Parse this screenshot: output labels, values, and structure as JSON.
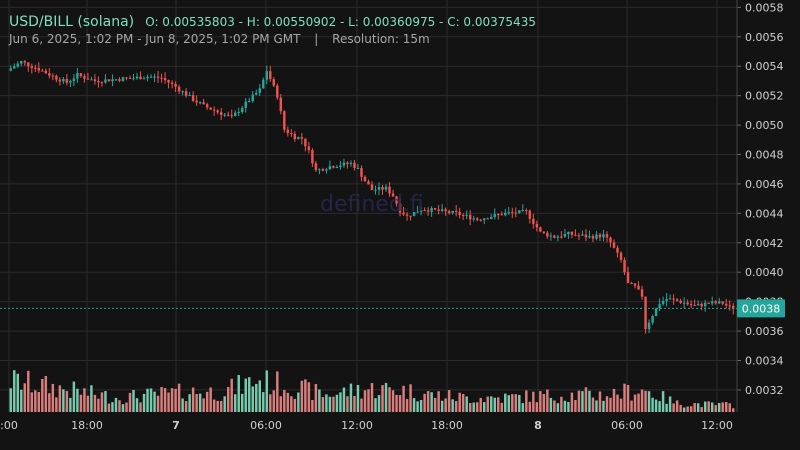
{
  "header": {
    "pair": "USD/BILL (solana)",
    "ohlc": "O: 0.00535803 - H: 0.00550902 - L: 0.00360975 - C: 0.00375435",
    "range": "Jun 6, 2025, 1:02 PM - Jun 8, 2025, 1:02 PM GMT",
    "separator": "|",
    "resolution": "Resolution: 15m"
  },
  "watermark": "defined.fi",
  "colors": {
    "up": "#26a69a",
    "up_light": "#7fe0c0",
    "down": "#ef5350",
    "down_light": "#f08a8a",
    "background": "#131313",
    "grid": "#2b2b2b",
    "last_price": "#26a69a"
  },
  "chart_data": {
    "type": "candlestick",
    "title": "USD/BILL (solana)",
    "last_price_label": "0.0038",
    "last_price": 0.00375435,
    "ylim": [
      0.00305,
      0.00585
    ],
    "y_ticks": [
      "0.0058",
      "0.0056",
      "0.0054",
      "0.0052",
      "0.0050",
      "0.0048",
      "0.0046",
      "0.0044",
      "0.0042",
      "0.0040",
      "0.0038",
      "0.0036",
      "0.0034",
      "0.0032"
    ],
    "x_ticks": [
      ":00",
      "18:00",
      "7",
      "06:00",
      "12:00",
      "18:00",
      "8",
      "06:00",
      "12:00"
    ],
    "price_path": [
      [
        0,
        0.00537
      ],
      [
        4,
        0.00543
      ],
      [
        9,
        0.00538
      ],
      [
        14,
        0.00532
      ],
      [
        17,
        0.00529
      ],
      [
        20,
        0.00534
      ],
      [
        25,
        0.0053
      ],
      [
        30,
        0.00531
      ],
      [
        36,
        0.00532
      ],
      [
        40,
        0.00533
      ],
      [
        44,
        0.00532
      ],
      [
        48,
        0.00526
      ],
      [
        52,
        0.00519
      ],
      [
        56,
        0.00513
      ],
      [
        60,
        0.00509
      ],
      [
        64,
        0.00505
      ],
      [
        66,
        0.0051
      ],
      [
        69,
        0.00517
      ],
      [
        72,
        0.00524
      ],
      [
        74,
        0.00537
      ],
      [
        77,
        0.0052
      ],
      [
        79,
        0.00497
      ],
      [
        82,
        0.00492
      ],
      [
        84,
        0.00491
      ],
      [
        86,
        0.00482
      ],
      [
        88,
        0.00469
      ],
      [
        92,
        0.00472
      ],
      [
        98,
        0.00474
      ],
      [
        100,
        0.0047
      ],
      [
        102,
        0.00462
      ],
      [
        104,
        0.00456
      ],
      [
        108,
        0.00457
      ],
      [
        110,
        0.00452
      ],
      [
        112,
        0.00442
      ],
      [
        114,
        0.00438
      ],
      [
        118,
        0.00443
      ],
      [
        122,
        0.00442
      ],
      [
        128,
        0.0044
      ],
      [
        134,
        0.00436
      ],
      [
        138,
        0.00438
      ],
      [
        142,
        0.0044
      ],
      [
        148,
        0.00441
      ],
      [
        152,
        0.00427
      ],
      [
        156,
        0.00424
      ],
      [
        160,
        0.00426
      ],
      [
        166,
        0.00424
      ],
      [
        170,
        0.00425
      ],
      [
        172,
        0.0042
      ],
      [
        175,
        0.00408
      ],
      [
        177,
        0.00392
      ],
      [
        179,
        0.0039
      ],
      [
        181,
        0.00384
      ],
      [
        182,
        0.00362
      ],
      [
        184,
        0.00371
      ],
      [
        186,
        0.00379
      ],
      [
        188,
        0.00382
      ],
      [
        192,
        0.0038
      ],
      [
        196,
        0.00377
      ],
      [
        200,
        0.00379
      ],
      [
        204,
        0.00379
      ],
      [
        206,
        0.00376
      ]
    ],
    "volume_profile": [
      [
        0,
        0.55
      ],
      [
        10,
        0.45
      ],
      [
        20,
        0.35
      ],
      [
        30,
        0.25
      ],
      [
        40,
        0.3
      ],
      [
        50,
        0.35
      ],
      [
        60,
        0.35
      ],
      [
        70,
        0.55
      ],
      [
        80,
        0.45
      ],
      [
        90,
        0.3
      ],
      [
        100,
        0.4
      ],
      [
        110,
        0.4
      ],
      [
        120,
        0.3
      ],
      [
        130,
        0.25
      ],
      [
        140,
        0.25
      ],
      [
        150,
        0.28
      ],
      [
        160,
        0.3
      ],
      [
        170,
        0.3
      ],
      [
        180,
        0.4
      ],
      [
        190,
        0.15
      ],
      [
        206,
        0.12
      ]
    ]
  }
}
